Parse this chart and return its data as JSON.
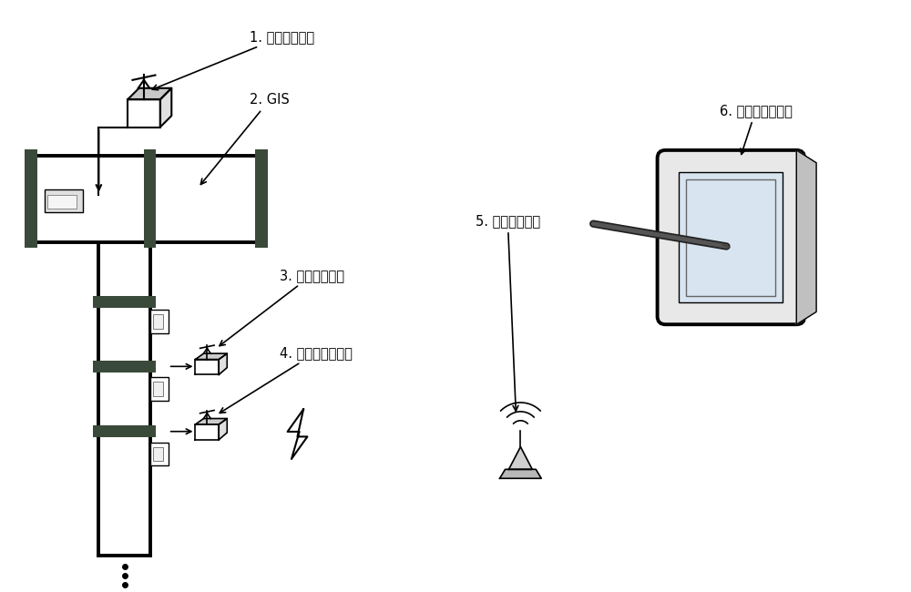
{
  "bg_color": "#ffffff",
  "line_color": "#000000",
  "dark_gray": "#2a2a2a",
  "medium_gray": "#666666",
  "light_gray": "#aaaaaa",
  "lighter_gray": "#cccccc",
  "screen_color": "#d8e4f0",
  "flange_color": "#3a4a3a",
  "label1": "1. 信号发生模块",
  "label2": "2. GIS",
  "label3": "3. 信号采集模块",
  "label4": "4. 安全性检测模块",
  "label5": "5. 无线收发模块",
  "label6": "6. 数据处理服务器",
  "font_size": 10.5
}
